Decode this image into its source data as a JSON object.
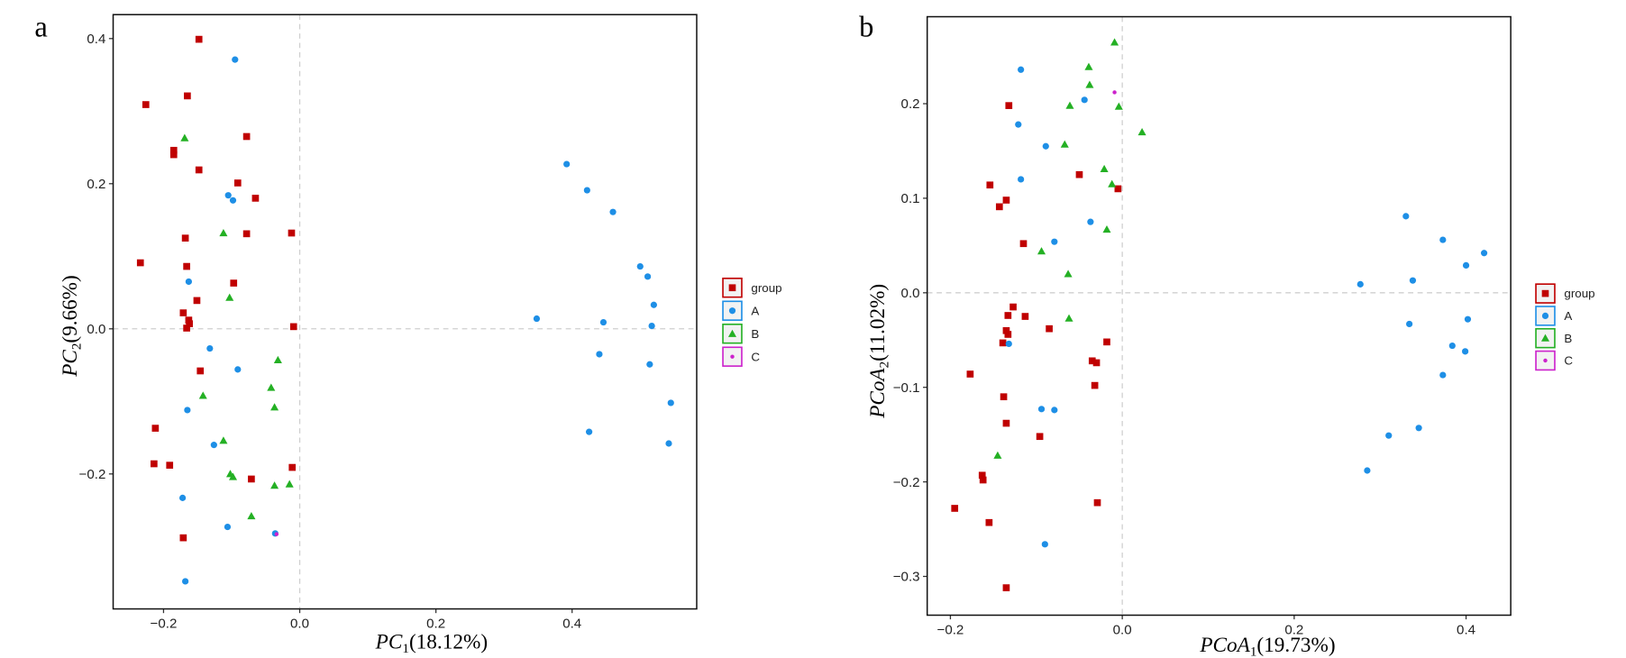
{
  "chart_data": [
    {
      "type": "scatter",
      "panel_label": "a",
      "xlabel": "PC1(18.12%)",
      "ylabel": "PC2(9.66%)",
      "xlim": [
        -0.274,
        0.583
      ],
      "ylim": [
        -0.386,
        0.433
      ],
      "xticks": [
        -0.2,
        0.0,
        0.2,
        0.4
      ],
      "xtick_labels": [
        "−0.2",
        "0.0",
        "0.2",
        "0.4"
      ],
      "yticks": [
        -0.2,
        0.0,
        0.2,
        0.4
      ],
      "ytick_labels": [
        "−0.2",
        "0.0",
        "0.2",
        "0.4"
      ],
      "grid": false,
      "reference_lines": [
        {
          "axis": "x",
          "value": 0,
          "style": "dashed"
        },
        {
          "axis": "y",
          "value": 0,
          "style": "dashed"
        }
      ],
      "legend": {
        "placement": "right"
      },
      "series": [
        {
          "name": "group",
          "marker": "square",
          "color": "#c00000",
          "points": [
            [
              -0.148,
              0.399
            ],
            [
              -0.226,
              0.309
            ],
            [
              -0.165,
              0.321
            ],
            [
              -0.185,
              0.246
            ],
            [
              -0.185,
              0.24
            ],
            [
              -0.078,
              0.265
            ],
            [
              -0.148,
              0.219
            ],
            [
              -0.091,
              0.201
            ],
            [
              -0.065,
              0.18
            ],
            [
              -0.078,
              0.131
            ],
            [
              -0.012,
              0.132
            ],
            [
              -0.168,
              0.125
            ],
            [
              -0.234,
              0.091
            ],
            [
              -0.166,
              0.086
            ],
            [
              -0.097,
              0.063
            ],
            [
              -0.151,
              0.039
            ],
            [
              -0.171,
              0.022
            ],
            [
              -0.163,
              0.012
            ],
            [
              -0.162,
              0.007
            ],
            [
              -0.166,
              0.001
            ],
            [
              -0.009,
              0.003
            ],
            [
              -0.146,
              -0.058
            ],
            [
              -0.212,
              -0.137
            ],
            [
              -0.214,
              -0.186
            ],
            [
              -0.191,
              -0.188
            ],
            [
              -0.071,
              -0.207
            ],
            [
              -0.011,
              -0.191
            ],
            [
              -0.171,
              -0.288
            ]
          ]
        },
        {
          "name": "A",
          "marker": "circle",
          "color": "#1e8fe6",
          "points": [
            [
              -0.095,
              0.371
            ],
            [
              -0.105,
              0.184
            ],
            [
              -0.098,
              0.177
            ],
            [
              -0.163,
              0.065
            ],
            [
              -0.132,
              -0.027
            ],
            [
              -0.091,
              -0.056
            ],
            [
              -0.165,
              -0.112
            ],
            [
              -0.126,
              -0.16
            ],
            [
              -0.172,
              -0.233
            ],
            [
              -0.106,
              -0.273
            ],
            [
              -0.168,
              -0.348
            ],
            [
              -0.036,
              -0.282
            ],
            [
              0.392,
              0.227
            ],
            [
              0.422,
              0.191
            ],
            [
              0.46,
              0.161
            ],
            [
              0.5,
              0.086
            ],
            [
              0.511,
              0.072
            ],
            [
              0.52,
              0.033
            ],
            [
              0.348,
              0.014
            ],
            [
              0.446,
              0.009
            ],
            [
              0.517,
              0.004
            ],
            [
              0.44,
              -0.035
            ],
            [
              0.514,
              -0.049
            ],
            [
              0.545,
              -0.102
            ],
            [
              0.425,
              -0.142
            ],
            [
              0.542,
              -0.158
            ]
          ]
        },
        {
          "name": "B",
          "marker": "triangle",
          "color": "#24b024",
          "points": [
            [
              -0.169,
              0.263
            ],
            [
              -0.112,
              0.132
            ],
            [
              -0.103,
              0.043
            ],
            [
              -0.032,
              -0.043
            ],
            [
              -0.142,
              -0.092
            ],
            [
              -0.042,
              -0.081
            ],
            [
              -0.037,
              -0.108
            ],
            [
              -0.112,
              -0.154
            ],
            [
              -0.102,
              -0.2
            ],
            [
              -0.098,
              -0.204
            ],
            [
              -0.037,
              -0.216
            ],
            [
              -0.015,
              -0.214
            ],
            [
              -0.071,
              -0.258
            ]
          ]
        },
        {
          "name": "C",
          "marker": "dot",
          "color": "#cc22cc",
          "points": [
            [
              -0.034,
              -0.283
            ]
          ]
        }
      ]
    },
    {
      "type": "scatter",
      "panel_label": "b",
      "xlabel": "PCoA1(19.73%)",
      "ylabel": "PCoA2(11.02%)",
      "xlim": [
        -0.227,
        0.452
      ],
      "ylim": [
        -0.341,
        0.292
      ],
      "xticks": [
        -0.2,
        0.0,
        0.2,
        0.4
      ],
      "xtick_labels": [
        "−0.2",
        "0.0",
        "0.2",
        "0.4"
      ],
      "yticks": [
        -0.3,
        -0.2,
        -0.1,
        0.0,
        0.1,
        0.2
      ],
      "ytick_labels": [
        "−0.3",
        "−0.2",
        "−0.1",
        "0.0",
        "0.1",
        "0.2"
      ],
      "grid": false,
      "reference_lines": [
        {
          "axis": "x",
          "value": 0,
          "style": "dashed"
        },
        {
          "axis": "y",
          "value": 0,
          "style": "dashed"
        }
      ],
      "legend": {
        "placement": "right"
      },
      "series": [
        {
          "name": "group",
          "marker": "square",
          "color": "#c00000",
          "points": [
            [
              -0.132,
              0.198
            ],
            [
              -0.154,
              0.114
            ],
            [
              -0.135,
              0.098
            ],
            [
              -0.143,
              0.091
            ],
            [
              -0.05,
              0.125
            ],
            [
              -0.005,
              0.11
            ],
            [
              -0.115,
              0.052
            ],
            [
              -0.127,
              -0.015
            ],
            [
              -0.113,
              -0.025
            ],
            [
              -0.133,
              -0.024
            ],
            [
              -0.135,
              -0.04
            ],
            [
              -0.133,
              -0.044
            ],
            [
              -0.139,
              -0.053
            ],
            [
              -0.085,
              -0.038
            ],
            [
              -0.018,
              -0.052
            ],
            [
              -0.035,
              -0.072
            ],
            [
              -0.03,
              -0.074
            ],
            [
              -0.177,
              -0.086
            ],
            [
              -0.032,
              -0.098
            ],
            [
              -0.138,
              -0.11
            ],
            [
              -0.135,
              -0.138
            ],
            [
              -0.096,
              -0.152
            ],
            [
              -0.163,
              -0.193
            ],
            [
              -0.162,
              -0.198
            ],
            [
              -0.195,
              -0.228
            ],
            [
              -0.155,
              -0.243
            ],
            [
              -0.029,
              -0.222
            ],
            [
              -0.135,
              -0.312
            ]
          ]
        },
        {
          "name": "A",
          "marker": "circle",
          "color": "#1e8fe6",
          "points": [
            [
              -0.118,
              0.236
            ],
            [
              -0.044,
              0.204
            ],
            [
              -0.121,
              0.178
            ],
            [
              -0.089,
              0.155
            ],
            [
              -0.118,
              0.12
            ],
            [
              -0.037,
              0.075
            ],
            [
              -0.079,
              0.054
            ],
            [
              -0.132,
              -0.054
            ],
            [
              -0.094,
              -0.123
            ],
            [
              -0.079,
              -0.124
            ],
            [
              -0.09,
              -0.266
            ],
            [
              0.33,
              0.081
            ],
            [
              0.373,
              0.056
            ],
            [
              0.421,
              0.042
            ],
            [
              0.4,
              0.029
            ],
            [
              0.277,
              0.009
            ],
            [
              0.338,
              0.013
            ],
            [
              0.402,
              -0.028
            ],
            [
              0.334,
              -0.033
            ],
            [
              0.384,
              -0.056
            ],
            [
              0.399,
              -0.062
            ],
            [
              0.373,
              -0.087
            ],
            [
              0.345,
              -0.143
            ],
            [
              0.31,
              -0.151
            ],
            [
              0.285,
              -0.188
            ]
          ]
        },
        {
          "name": "B",
          "marker": "triangle",
          "color": "#24b024",
          "points": [
            [
              -0.009,
              0.265
            ],
            [
              -0.039,
              0.239
            ],
            [
              -0.038,
              0.22
            ],
            [
              -0.061,
              0.198
            ],
            [
              -0.004,
              0.197
            ],
            [
              0.023,
              0.17
            ],
            [
              -0.067,
              0.157
            ],
            [
              -0.021,
              0.131
            ],
            [
              -0.012,
              0.115
            ],
            [
              -0.094,
              0.044
            ],
            [
              -0.018,
              0.067
            ],
            [
              -0.063,
              0.02
            ],
            [
              -0.062,
              -0.027
            ],
            [
              -0.145,
              -0.172
            ]
          ]
        },
        {
          "name": "C",
          "marker": "dot",
          "color": "#cc22cc",
          "points": [
            [
              -0.009,
              0.212
            ]
          ]
        }
      ]
    }
  ]
}
